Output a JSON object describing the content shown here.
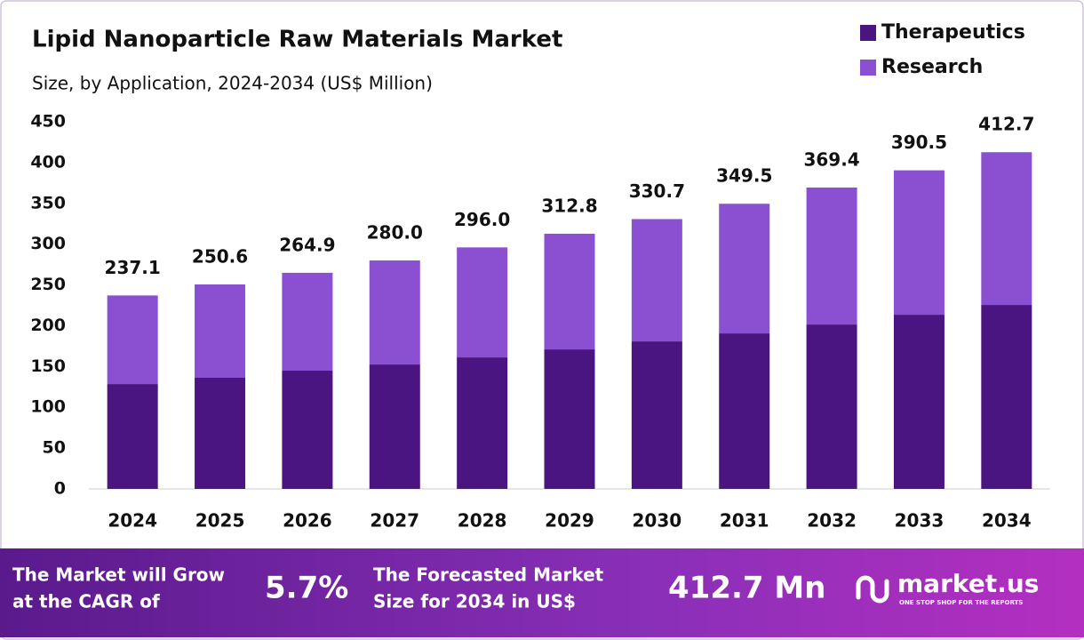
{
  "chart_data": {
    "type": "stacked-bar",
    "title": "Lipid Nanoparticle Raw Materials Market",
    "subtitle": "Size, by Application, 2024-2034 (US$ Million)",
    "categories": [
      "2024",
      "2025",
      "2026",
      "2027",
      "2028",
      "2029",
      "2030",
      "2031",
      "2032",
      "2033",
      "2034"
    ],
    "series": [
      {
        "name": "Therapeutics",
        "color": "#4b1581",
        "values": [
          128.5,
          136.2,
          144.9,
          152.5,
          161.2,
          171.0,
          180.8,
          190.6,
          201.5,
          213.5,
          225.5
        ]
      },
      {
        "name": "Research",
        "color": "#8a50d1",
        "values": [
          108.6,
          114.4,
          120.0,
          127.5,
          134.8,
          141.8,
          149.9,
          158.9,
          167.9,
          177.0,
          187.2
        ]
      }
    ],
    "total_labels": [
      "237.1",
      "250.6",
      "264.9",
      "280.0",
      "296.0",
      "312.8",
      "330.7",
      "349.5",
      "369.4",
      "390.5",
      "412.7"
    ],
    "ylim": [
      0,
      450
    ],
    "yticks": [
      0,
      50,
      100,
      150,
      200,
      250,
      300,
      350,
      400,
      450
    ],
    "grid": false,
    "legend": "top-right"
  },
  "footer": {
    "cagr_text": [
      "The Market will Grow",
      "at the CAGR of"
    ],
    "cagr_value": "5.7%",
    "forecast_text": [
      "The Forecasted Market",
      "Size for 2034 in US$"
    ],
    "forecast_value": "412.7 Mn",
    "brand": "market.us",
    "tagline": "ONE STOP SHOP FOR THE REPORTS"
  }
}
